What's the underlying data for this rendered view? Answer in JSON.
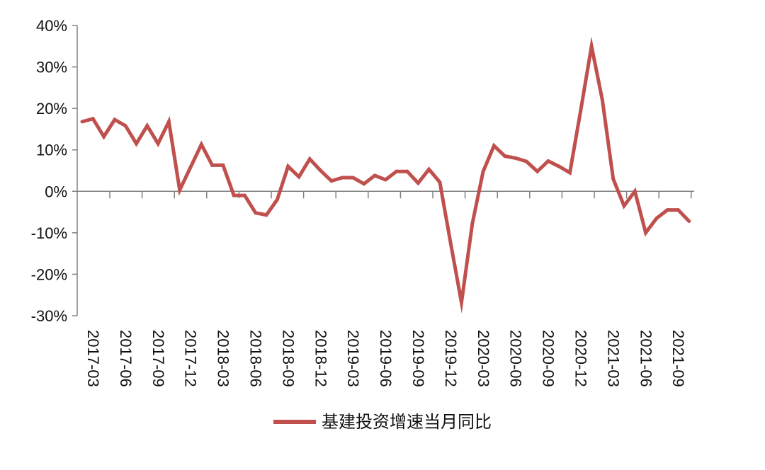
{
  "chart_data": {
    "type": "line",
    "title": "",
    "xlabel": "",
    "ylabel": "",
    "ylim": [
      -0.3,
      0.4
    ],
    "yticks": [
      "40%",
      "30%",
      "20%",
      "10%",
      "0%",
      "-10%",
      "-20%",
      "-30%"
    ],
    "ytick_values": [
      0.4,
      0.3,
      0.2,
      0.1,
      0.0,
      -0.1,
      -0.2,
      -0.3
    ],
    "x": [
      "2017-03",
      "2017-04",
      "2017-05",
      "2017-06",
      "2017-07",
      "2017-08",
      "2017-09",
      "2017-10",
      "2017-11",
      "2017-12",
      "2018-01",
      "2018-02",
      "2018-03",
      "2018-04",
      "2018-05",
      "2018-06",
      "2018-07",
      "2018-08",
      "2018-09",
      "2018-10",
      "2018-11",
      "2018-12",
      "2019-01",
      "2019-02",
      "2019-03",
      "2019-04",
      "2019-05",
      "2019-06",
      "2019-07",
      "2019-08",
      "2019-09",
      "2019-10",
      "2019-11",
      "2019-12",
      "2020-01",
      "2020-02",
      "2020-03",
      "2020-04",
      "2020-05",
      "2020-06",
      "2020-07",
      "2020-08",
      "2020-09",
      "2020-10",
      "2020-11",
      "2020-12",
      "2021-01",
      "2021-02",
      "2021-03",
      "2021-04",
      "2021-05",
      "2021-06",
      "2021-07",
      "2021-08",
      "2021-09",
      "2021-10",
      "2021-11"
    ],
    "xtick_labels": [
      "2017-03",
      "2017-06",
      "2017-09",
      "2017-12",
      "2018-03",
      "2018-06",
      "2018-09",
      "2018-12",
      "2019-03",
      "2019-06",
      "2019-09",
      "2019-12",
      "2020-03",
      "2020-06",
      "2020-09",
      "2020-12",
      "2021-03",
      "2021-06",
      "2021-09"
    ],
    "series": [
      {
        "name": "基建投资增速当月同比",
        "color": "#c0504d",
        "values": [
          0.168,
          0.175,
          0.132,
          0.173,
          0.158,
          0.115,
          0.158,
          0.115,
          0.168,
          0.003,
          0.058,
          0.113,
          0.063,
          0.063,
          -0.01,
          -0.01,
          -0.052,
          -0.057,
          -0.02,
          0.06,
          0.035,
          0.078,
          0.05,
          0.025,
          0.033,
          0.033,
          0.018,
          0.038,
          0.028,
          0.048,
          0.048,
          0.02,
          0.053,
          0.022,
          -0.125,
          -0.268,
          -0.078,
          0.048,
          0.11,
          0.085,
          0.08,
          0.072,
          0.048,
          0.073,
          0.06,
          0.045,
          0.195,
          0.35,
          0.22,
          0.03,
          -0.035,
          0.0,
          -0.1,
          -0.065,
          -0.045,
          -0.045,
          -0.072
        ]
      }
    ],
    "legend": "bottom-center",
    "grid": false
  }
}
